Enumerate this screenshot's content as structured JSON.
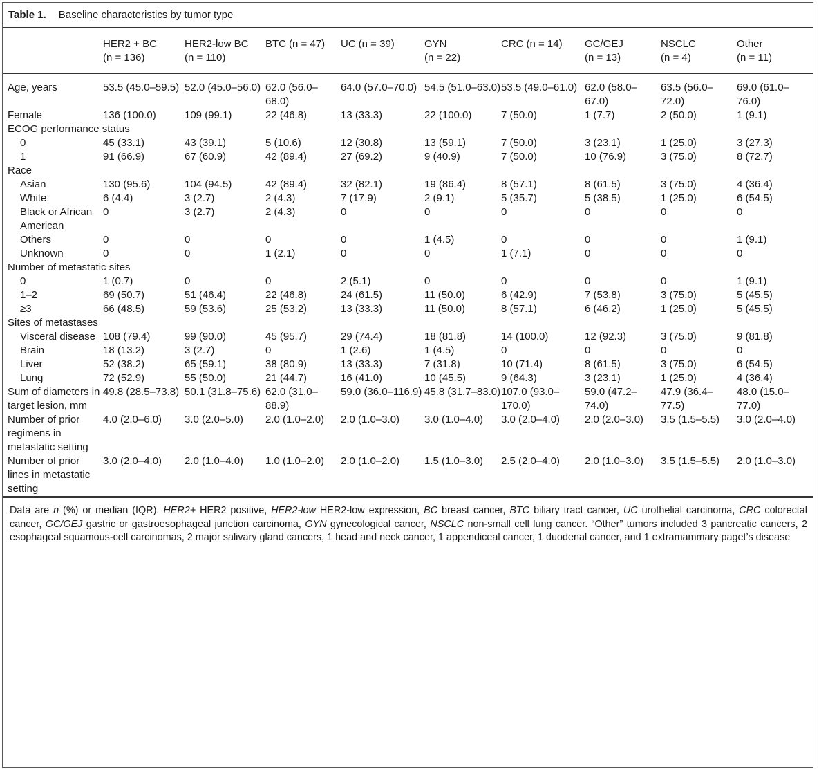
{
  "title": {
    "label": "Table 1.",
    "text": "Baseline characteristics by tumor type"
  },
  "columns": [
    {
      "name": "HER2 + BC",
      "n": "(n = 136)",
      "inline": false
    },
    {
      "name": "HER2-low BC",
      "n": "(n = 110)",
      "inline": false
    },
    {
      "name": "BTC",
      "n": "(n = 47)",
      "inline": true
    },
    {
      "name": "UC",
      "n": "(n = 39)",
      "inline": true
    },
    {
      "name": "GYN",
      "n": "(n = 22)",
      "inline": false
    },
    {
      "name": "CRC",
      "n": "(n = 14)",
      "inline": true
    },
    {
      "name": "GC/GEJ",
      "n": "(n = 13)",
      "inline": false
    },
    {
      "name": "NSCLC",
      "n": "(n = 4)",
      "inline": false
    },
    {
      "name": "Other",
      "n": "(n = 11)",
      "inline": false
    }
  ],
  "rows": [
    {
      "label": "Age, years",
      "indent": false,
      "values": [
        "53.5 (45.0–59.5)",
        "52.0 (45.0–56.0)",
        "62.0 (56.0–68.0)",
        "64.0 (57.0–70.0)",
        "54.5 (51.0–63.0)",
        "53.5 (49.0–61.0)",
        "62.0 (58.0–67.0)",
        "63.5 (56.0–72.0)",
        "69.0 (61.0–76.0)"
      ]
    },
    {
      "label": "Female",
      "indent": false,
      "values": [
        "136 (100.0)",
        "109 (99.1)",
        "22 (46.8)",
        "13 (33.3)",
        "22 (100.0)",
        "7 (50.0)",
        "1 (7.7)",
        "2 (50.0)",
        "1 (9.1)"
      ]
    },
    {
      "label": "ECOG performance status",
      "indent": false,
      "section": true,
      "values": []
    },
    {
      "label": "0",
      "indent": true,
      "values": [
        "45 (33.1)",
        "43 (39.1)",
        "5 (10.6)",
        "12 (30.8)",
        "13 (59.1)",
        "7 (50.0)",
        "3 (23.1)",
        "1 (25.0)",
        "3 (27.3)"
      ]
    },
    {
      "label": "1",
      "indent": true,
      "values": [
        "91 (66.9)",
        "67 (60.9)",
        "42 (89.4)",
        "27 (69.2)",
        "9 (40.9)",
        "7 (50.0)",
        "10 (76.9)",
        "3 (75.0)",
        "8 (72.7)"
      ]
    },
    {
      "label": "Race",
      "indent": false,
      "section": true,
      "values": []
    },
    {
      "label": "Asian",
      "indent": true,
      "values": [
        "130 (95.6)",
        "104 (94.5)",
        "42 (89.4)",
        "32 (82.1)",
        "19 (86.4)",
        "8 (57.1)",
        "8 (61.5)",
        "3 (75.0)",
        "4 (36.4)"
      ]
    },
    {
      "label": "White",
      "indent": true,
      "values": [
        "6 (4.4)",
        "3 (2.7)",
        "2 (4.3)",
        "7 (17.9)",
        "2 (9.1)",
        "5 (35.7)",
        "5 (38.5)",
        "1 (25.0)",
        "6 (54.5)"
      ]
    },
    {
      "label": "Black or African American",
      "indent": true,
      "values": [
        "0",
        "3 (2.7)",
        "2 (4.3)",
        "0",
        "0",
        "0",
        "0",
        "0",
        "0"
      ]
    },
    {
      "label": "Others",
      "indent": true,
      "values": [
        "0",
        "0",
        "0",
        "0",
        "1 (4.5)",
        "0",
        "0",
        "0",
        "1 (9.1)"
      ]
    },
    {
      "label": "Unknown",
      "indent": true,
      "values": [
        "0",
        "0",
        "1 (2.1)",
        "0",
        "0",
        "1 (7.1)",
        "0",
        "0",
        "0"
      ]
    },
    {
      "label": "Number of metastatic sites",
      "indent": false,
      "section": true,
      "values": []
    },
    {
      "label": "0",
      "indent": true,
      "values": [
        "1 (0.7)",
        "0",
        "0",
        "2 (5.1)",
        "0",
        "0",
        "0",
        "0",
        "1 (9.1)"
      ]
    },
    {
      "label": "1–2",
      "indent": true,
      "values": [
        "69 (50.7)",
        "51 (46.4)",
        "22 (46.8)",
        "24 (61.5)",
        "11 (50.0)",
        "6 (42.9)",
        "7 (53.8)",
        "3 (75.0)",
        "5 (45.5)"
      ]
    },
    {
      "label": "≥3",
      "indent": true,
      "values": [
        "66 (48.5)",
        "59 (53.6)",
        "25 (53.2)",
        "13 (33.3)",
        "11 (50.0)",
        "8 (57.1)",
        "6 (46.2)",
        "1 (25.0)",
        "5 (45.5)"
      ]
    },
    {
      "label": "Sites of metastases",
      "indent": false,
      "section": true,
      "values": []
    },
    {
      "label": "Visceral disease",
      "indent": true,
      "values": [
        "108 (79.4)",
        "99 (90.0)",
        "45 (95.7)",
        "29 (74.4)",
        "18 (81.8)",
        "14 (100.0)",
        "12 (92.3)",
        "3 (75.0)",
        "9 (81.8)"
      ]
    },
    {
      "label": "Brain",
      "indent": true,
      "values": [
        "18 (13.2)",
        "3 (2.7)",
        "0",
        "1 (2.6)",
        "1 (4.5)",
        "0",
        "0",
        "0",
        "0"
      ]
    },
    {
      "label": "Liver",
      "indent": true,
      "values": [
        "52 (38.2)",
        "65 (59.1)",
        "38 (80.9)",
        "13 (33.3)",
        "7 (31.8)",
        "10 (71.4)",
        "8 (61.5)",
        "3 (75.0)",
        "6 (54.5)"
      ]
    },
    {
      "label": "Lung",
      "indent": true,
      "values": [
        "72 (52.9)",
        "55 (50.0)",
        "21 (44.7)",
        "16 (41.0)",
        "10 (45.5)",
        "9 (64.3)",
        "3 (23.1)",
        "1 (25.0)",
        "4 (36.4)"
      ]
    },
    {
      "label": "Sum of diameters in target lesion, mm",
      "indent": false,
      "values": [
        "49.8 (28.5–73.8)",
        "50.1 (31.8–75.6)",
        "62.0 (31.0–88.9)",
        "59.0 (36.0–116.9)",
        "45.8 (31.7–83.0)",
        "107.0 (93.0–170.0)",
        "59.0 (47.2–74.0)",
        "47.9 (36.4–77.5)",
        "48.0 (15.0–77.0)"
      ]
    },
    {
      "label": "Number of prior regimens in metastatic setting",
      "indent": false,
      "values": [
        "4.0 (2.0–6.0)",
        "3.0 (2.0–5.0)",
        "2.0 (1.0–2.0)",
        "2.0 (1.0–3.0)",
        "3.0 (1.0–4.0)",
        "3.0 (2.0–4.0)",
        "2.0 (2.0–3.0)",
        "3.5 (1.5–5.5)",
        "3.0 (2.0–4.0)"
      ]
    },
    {
      "label": "Number of prior lines in metastatic setting",
      "indent": false,
      "values": [
        "3.0 (2.0–4.0)",
        "2.0 (1.0–4.0)",
        "1.0 (1.0–2.0)",
        "2.0 (1.0–2.0)",
        "1.5 (1.0–3.0)",
        "2.5 (2.0–4.0)",
        "2.0 (1.0–3.0)",
        "3.5 (1.5–5.5)",
        "2.0 (1.0–3.0)"
      ]
    }
  ],
  "footnote": [
    {
      "t": "Data are ",
      "i": false
    },
    {
      "t": "n",
      "i": true
    },
    {
      "t": " (%) or median (IQR). ",
      "i": false
    },
    {
      "t": "HER2+",
      "i": true
    },
    {
      "t": " HER2 positive, ",
      "i": false
    },
    {
      "t": "HER2-low",
      "i": true
    },
    {
      "t": " HER2-low expression, ",
      "i": false
    },
    {
      "t": "BC",
      "i": true
    },
    {
      "t": " breast cancer, ",
      "i": false
    },
    {
      "t": "BTC",
      "i": true
    },
    {
      "t": " biliary tract cancer, ",
      "i": false
    },
    {
      "t": "UC",
      "i": true
    },
    {
      "t": " urothelial carcinoma, ",
      "i": false
    },
    {
      "t": "CRC",
      "i": true
    },
    {
      "t": " colorectal cancer, ",
      "i": false
    },
    {
      "t": "GC/GEJ",
      "i": true
    },
    {
      "t": " gastric or gastroesophageal junction carcinoma, ",
      "i": false
    },
    {
      "t": "GYN",
      "i": true
    },
    {
      "t": " gynecological cancer, ",
      "i": false
    },
    {
      "t": "NSCLC",
      "i": true
    },
    {
      "t": " non-small cell lung cancer. “Other” tumors included 3 pancreatic cancers, 2 esophageal squamous-cell carcinomas, 2 major salivary gland cancers, 1 head and neck cancer, 1 appendiceal cancer, 1 duodenal cancer, and 1 extramammary paget’s disease",
      "i": false
    }
  ]
}
